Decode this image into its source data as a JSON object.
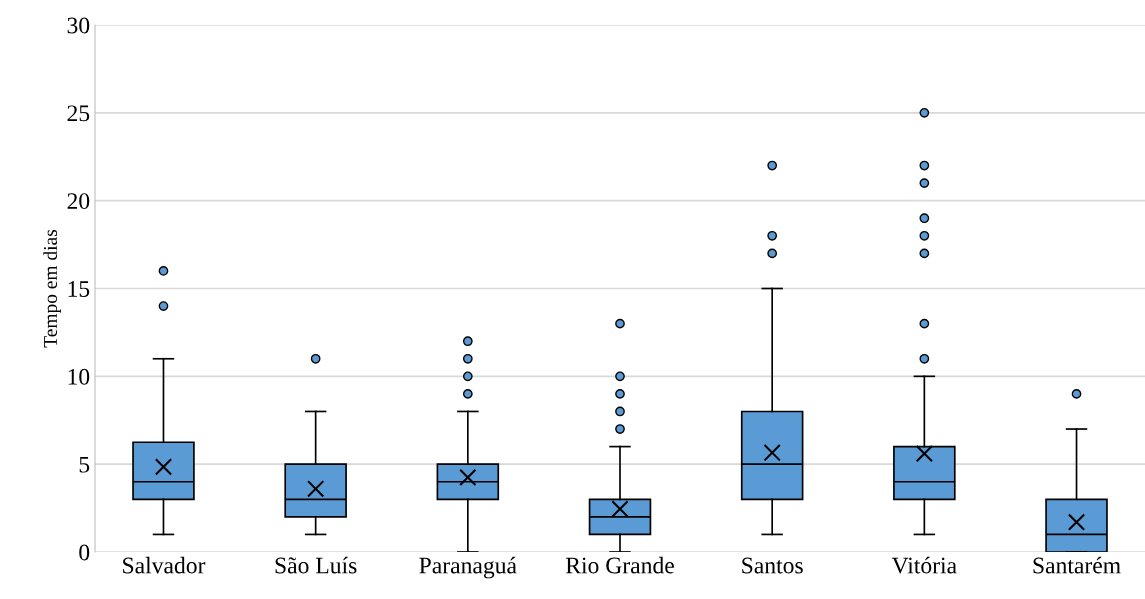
{
  "chart_data": {
    "type": "box",
    "ylabel": "Tempo em dias",
    "categories": [
      "Salvador",
      "São Luís",
      "Paranaguá",
      "Rio Grande",
      "Santos",
      "Vitória",
      "Santarém"
    ],
    "color": "#5b9bd5",
    "ylim": [
      0,
      30
    ],
    "yticks": [
      0,
      5,
      10,
      15,
      20,
      25,
      30
    ],
    "grid": "y",
    "boxes": [
      {
        "low": 1,
        "q1": 3,
        "median": 4,
        "q3": 6.25,
        "high": 11,
        "mean": 4.85,
        "outliers": [
          14,
          16
        ]
      },
      {
        "low": 1,
        "q1": 2,
        "median": 3,
        "q3": 5,
        "high": 8,
        "mean": 3.6,
        "outliers": [
          11
        ]
      },
      {
        "low": 0,
        "q1": 3,
        "median": 4,
        "q3": 5,
        "high": 8,
        "mean": 4.25,
        "outliers": [
          9,
          10,
          11,
          12
        ]
      },
      {
        "low": 0,
        "q1": 1,
        "median": 2,
        "q3": 3,
        "high": 6,
        "mean": 2.45,
        "outliers": [
          7,
          8,
          9,
          10,
          13
        ]
      },
      {
        "low": 1,
        "q1": 3,
        "median": 5,
        "q3": 8,
        "high": 15,
        "mean": 5.65,
        "outliers": [
          17,
          18,
          22
        ]
      },
      {
        "low": 1,
        "q1": 3,
        "median": 4,
        "q3": 6,
        "high": 10,
        "mean": 5.6,
        "outliers": [
          11,
          13,
          17,
          18,
          19,
          21,
          22,
          25
        ]
      },
      {
        "low": 0,
        "q1": 0,
        "median": 1,
        "q3": 3,
        "high": 7,
        "mean": 1.7,
        "outliers": [
          9
        ]
      }
    ]
  }
}
